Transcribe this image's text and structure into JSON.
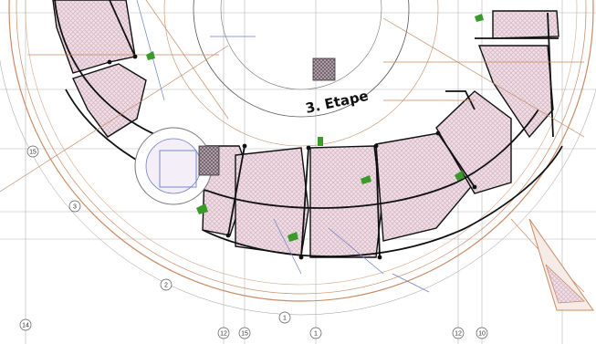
{
  "drawing": {
    "stage_label": "3. Etape",
    "grid_labels": [
      "14",
      "12",
      "15",
      "12",
      "10",
      "15",
      "3",
      "2",
      "1",
      "1"
    ],
    "colors": {
      "paper": "#ffffff",
      "slab_hatch": "#d9b9c6",
      "slab_fill": "#efe1e7",
      "wall_line": "#111111",
      "dimension_line": "#c98a63",
      "grid_line": "#9a9a9a",
      "blue_detail": "#6d7fc4",
      "rebar_marker": "#3a9a2a"
    }
  }
}
